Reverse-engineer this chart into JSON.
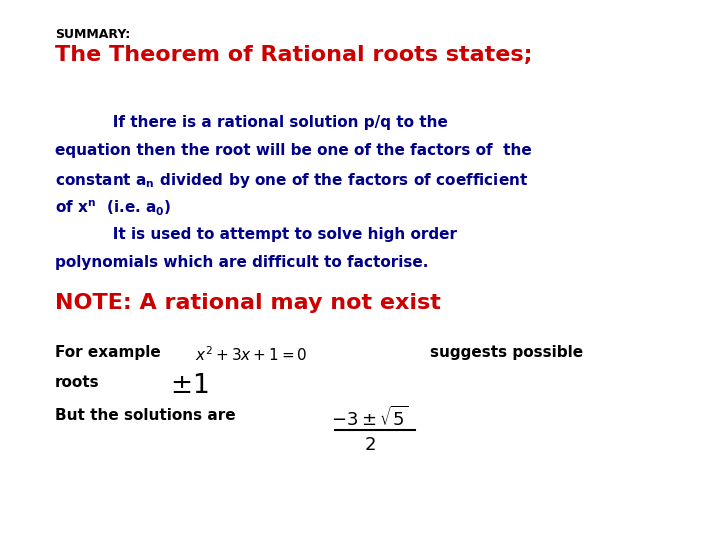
{
  "bg_color": "#ffffff",
  "summary_label": "SUMMARY:",
  "title_text": "The Theorem of Rational roots states;",
  "title_color": "#cc0000",
  "body_color": "#00008B",
  "body_text_line1": "           If there is a rational solution p/q to the",
  "body_text_line2": "equation then the root will be one of the factors of  the",
  "body_text_line3": "constant aₙ divided by one of the factors of coefficient",
  "body_text_line4": "of xⁿ  (i.e. a₀)",
  "body_text_line5": "           It is used to attempt to solve high order",
  "body_text_line6": "polynomials which are difficult to factorise.",
  "note_text": "NOTE: A rational may not exist",
  "note_color": "#cc0000",
  "example_label": "For example",
  "suggests_text": "suggests possible",
  "roots_label": "roots",
  "solutions_label": "But the solutions are",
  "summary_fontsize": 9,
  "title_fontsize": 16,
  "body_fontsize": 11,
  "note_fontsize": 16,
  "example_fontsize": 11
}
